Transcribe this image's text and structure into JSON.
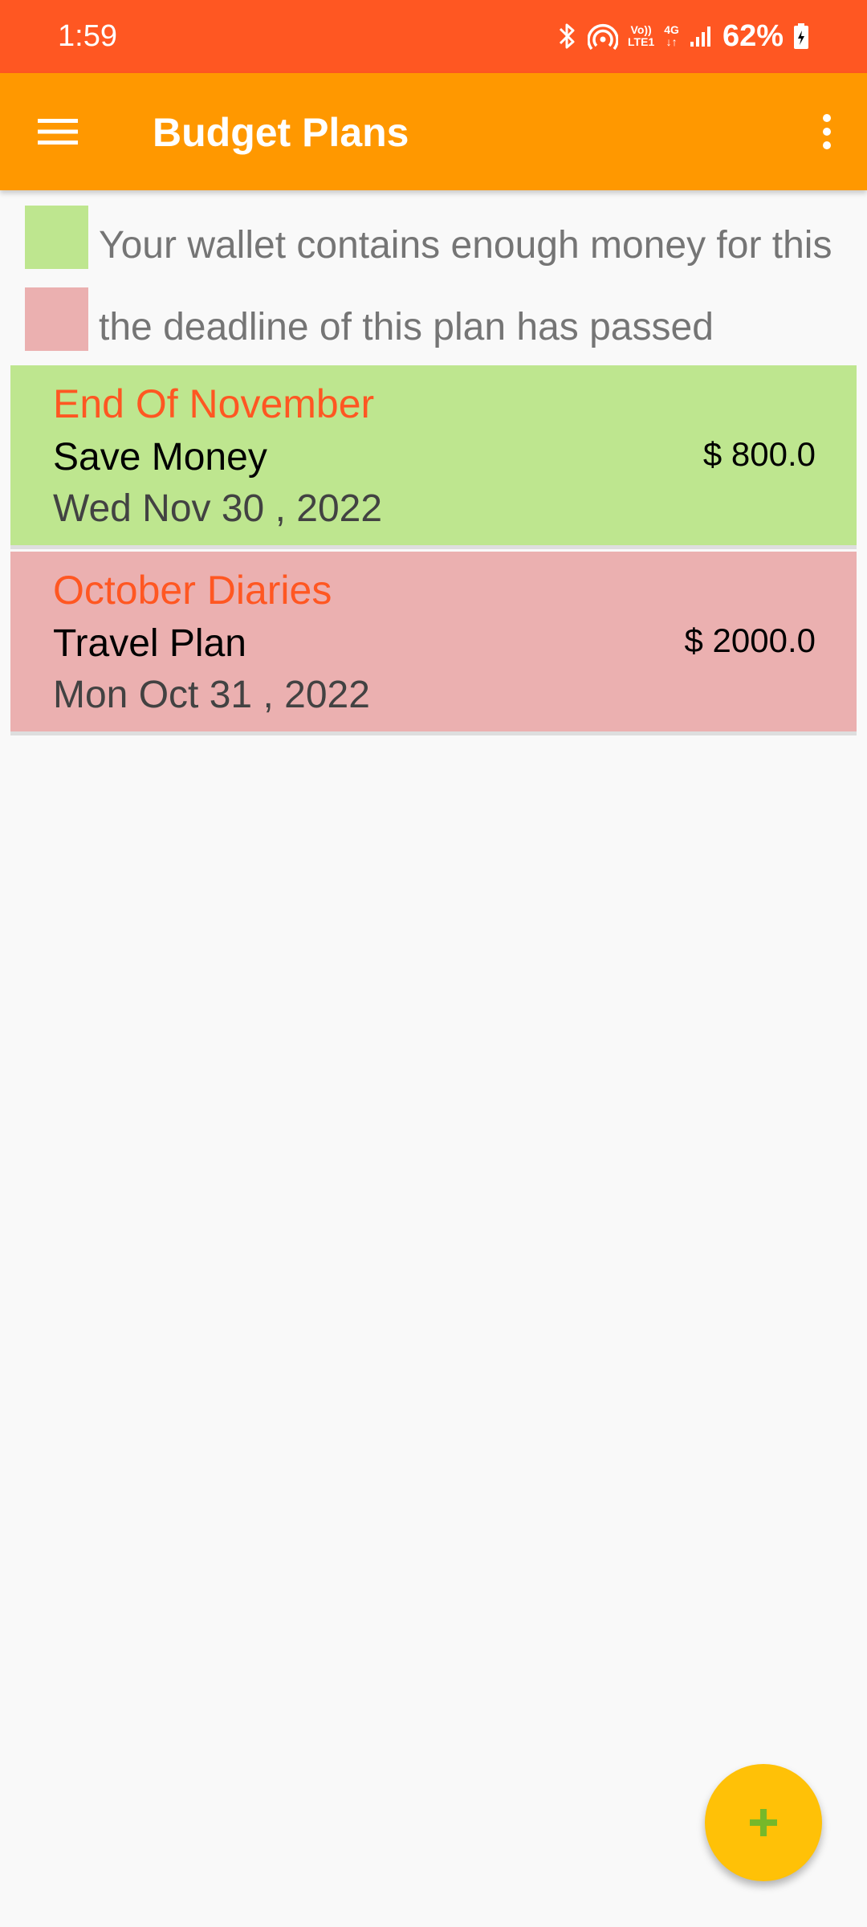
{
  "status_bar": {
    "time": "1:59",
    "volte_label_top": "Vo))",
    "volte_label_bottom": "LTE1",
    "network_label": "4G",
    "battery_percent": "62%",
    "icons": [
      "bluetooth-icon",
      "hotspot-icon",
      "volte-icon",
      "network-4g-icon",
      "signal-icon",
      "battery-icon"
    ]
  },
  "app_bar": {
    "title": "Budget Plans",
    "menu_icon": "hamburger-menu-icon",
    "overflow_icon": "more-vert-icon"
  },
  "legend": [
    {
      "text": "Your wallet contains enough money for this",
      "color": "#bee68f"
    },
    {
      "text": "the deadline of this plan has passed",
      "color": "#ebb0b0"
    }
  ],
  "plans": [
    {
      "title": "End Of November",
      "type": "Save Money",
      "date": "Wed Nov 30 , 2022",
      "amount": "$ 800.0",
      "color": "#bee68f"
    },
    {
      "title": "October Diaries",
      "type": "Travel Plan",
      "date": "Mon Oct 31 , 2022",
      "amount": "$ 2000.0",
      "color": "#ebb0b0"
    }
  ],
  "fab": {
    "icon": "plus-icon",
    "color": "#ffc107",
    "icon_color": "#76b82a"
  },
  "colors": {
    "status_bar": "#ff5722",
    "app_bar": "#ff9800",
    "plan_title": "#ff5722",
    "background": "#f9f9f9"
  }
}
